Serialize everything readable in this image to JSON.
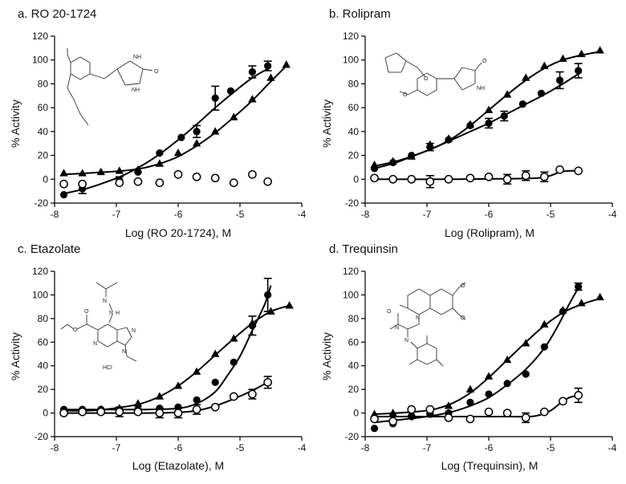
{
  "colors": {
    "ink": "#000000",
    "background": "#ffffff"
  },
  "chart_data": [
    {
      "type": "scatter",
      "title": "a.  RO 20-1724",
      "xlabel": "Log (RO 20-1724), M",
      "ylabel": "%  Activity",
      "xlim": [
        -8,
        -4
      ],
      "ylim": [
        -20,
        120
      ],
      "x_ticks": [
        "-8",
        "-7",
        "-6",
        "-5",
        "-4"
      ],
      "y_ticks": [
        "-20",
        "0",
        "20",
        "40",
        "60",
        "80",
        "100",
        "120"
      ],
      "structure_labels": [
        "NH",
        "O",
        "NH"
      ],
      "series": [
        {
          "name": "filled circles",
          "marker": "circle-filled",
          "x": [
            -7.85,
            -7.55,
            -6.95,
            -6.65,
            -6.3,
            -5.95,
            -5.7,
            -5.4,
            -5.15,
            -4.8,
            -4.55
          ],
          "y": [
            -13,
            -8,
            -1,
            6,
            22,
            35,
            40,
            68,
            74,
            90,
            95
          ],
          "err": [
            0,
            4,
            3,
            0,
            0,
            0,
            5,
            10,
            0,
            5,
            4
          ],
          "fit_x": [
            -7.85,
            -7.5,
            -7.2,
            -6.9,
            -6.6,
            -6.3,
            -6.0,
            -5.7,
            -5.4,
            -5.1,
            -4.8,
            -4.5
          ],
          "fit_y": [
            -12,
            -8,
            -3,
            3,
            11,
            21,
            33,
            46,
            60,
            73,
            85,
            94
          ]
        },
        {
          "name": "filled triangles",
          "marker": "triangle-filled",
          "x": [
            -7.85,
            -7.55,
            -7.25,
            -6.95,
            -6.65,
            -6.3,
            -6.0,
            -5.7,
            -5.4,
            -5.1,
            -4.8,
            -4.5,
            -4.25
          ],
          "y": [
            5,
            5,
            6,
            7,
            8,
            13,
            22,
            30,
            40,
            52,
            67,
            85,
            96
          ],
          "fit_x": [
            -7.85,
            -7.5,
            -7.2,
            -6.9,
            -6.6,
            -6.3,
            -6.0,
            -5.7,
            -5.4,
            -5.1,
            -4.8,
            -4.5,
            -4.25
          ],
          "fit_y": [
            4,
            5,
            6,
            7,
            9,
            13,
            19,
            28,
            39,
            52,
            66,
            82,
            95
          ]
        },
        {
          "name": "open circles",
          "marker": "circle-open",
          "x": [
            -7.85,
            -7.55,
            -6.95,
            -6.65,
            -6.3,
            -6.0,
            -5.7,
            -5.4,
            -5.1,
            -4.8,
            -4.55
          ],
          "y": [
            -4,
            -4,
            -3,
            -2,
            -3,
            4,
            2,
            1,
            -3,
            4,
            -2
          ],
          "err": [
            0,
            0,
            0,
            0,
            0,
            0,
            0,
            0,
            0,
            0,
            0
          ]
        }
      ]
    },
    {
      "type": "scatter",
      "title": "b.  Rolipram",
      "xlabel": "Log (Rolipram), M",
      "ylabel": "%  Activity",
      "xlim": [
        -8,
        -4
      ],
      "ylim": [
        -20,
        120
      ],
      "x_ticks": [
        "-8",
        "-7",
        "-6",
        "-5",
        "-4"
      ],
      "y_ticks": [
        "-20",
        "0",
        "20",
        "40",
        "60",
        "80",
        "100",
        "120"
      ],
      "structure_labels": [
        "O",
        "O",
        "O",
        "NH"
      ],
      "series": [
        {
          "name": "filled circles",
          "marker": "circle-filled",
          "x": [
            -7.85,
            -7.55,
            -7.25,
            -6.95,
            -6.65,
            -6.3,
            -6.0,
            -5.75,
            -5.45,
            -5.15,
            -4.85,
            -4.55
          ],
          "y": [
            9,
            14,
            20,
            27,
            33,
            45,
            47,
            53,
            63,
            72,
            83,
            91
          ],
          "err": [
            0,
            0,
            0,
            3,
            0,
            0,
            4,
            4,
            0,
            0,
            7,
            6
          ],
          "fit_x": [
            -7.85,
            -7.5,
            -7.2,
            -6.9,
            -6.6,
            -6.3,
            -6.0,
            -5.7,
            -5.4,
            -5.1,
            -4.8,
            -4.5
          ],
          "fit_y": [
            9,
            14,
            20,
            26,
            33,
            40,
            47,
            55,
            63,
            71,
            80,
            90
          ]
        },
        {
          "name": "filled triangles",
          "marker": "triangle-filled",
          "x": [
            -7.85,
            -7.55,
            -7.25,
            -6.95,
            -6.65,
            -6.3,
            -6.0,
            -5.7,
            -5.4,
            -5.1,
            -4.8,
            -4.5,
            -4.2
          ],
          "y": [
            12,
            15,
            19,
            29,
            34,
            46,
            58,
            71,
            85,
            95,
            101,
            105,
            108
          ],
          "fit_x": [
            -7.85,
            -7.5,
            -7.2,
            -6.9,
            -6.6,
            -6.3,
            -6.0,
            -5.7,
            -5.4,
            -5.1,
            -4.8,
            -4.5,
            -4.2
          ],
          "fit_y": [
            11,
            15,
            20,
            26,
            34,
            45,
            58,
            71,
            83,
            93,
            100,
            104,
            107
          ]
        },
        {
          "name": "open circles",
          "marker": "circle-open",
          "x": [
            -7.85,
            -7.55,
            -7.25,
            -6.95,
            -6.65,
            -6.3,
            -6.0,
            -5.7,
            -5.4,
            -5.1,
            -4.85,
            -4.55
          ],
          "y": [
            1,
            0,
            0,
            -2,
            0,
            1,
            2,
            0,
            3,
            2,
            8,
            7
          ],
          "err": [
            0,
            0,
            0,
            5,
            0,
            0,
            0,
            4,
            4,
            4,
            0,
            0
          ],
          "fit_x": [
            -7.85,
            -6.5,
            -5.5,
            -5.2,
            -5.0,
            -4.85,
            -4.7,
            -4.55
          ],
          "fit_y": [
            0,
            0,
            0.5,
            1,
            3,
            6,
            7,
            7
          ]
        }
      ]
    },
    {
      "type": "scatter",
      "title": "c.  Etazolate",
      "xlabel": "Log (Etazolate), M",
      "ylabel": "%  Activity",
      "xlim": [
        -8,
        -4
      ],
      "ylim": [
        -20,
        120
      ],
      "x_ticks": [
        "-8",
        "-7",
        "-6",
        "-5",
        "-4"
      ],
      "y_ticks": [
        "-20",
        "0",
        "20",
        "40",
        "60",
        "80",
        "100",
        "120"
      ],
      "structure_labels": [
        "N",
        "N",
        "H",
        "O",
        "O",
        "N",
        "N",
        "N",
        "HCl"
      ],
      "series": [
        {
          "name": "filled circles",
          "marker": "circle-filled",
          "x": [
            -7.85,
            -7.55,
            -7.25,
            -6.95,
            -6.65,
            -6.3,
            -6.0,
            -5.7,
            -5.4,
            -5.1,
            -4.8,
            -4.55
          ],
          "y": [
            3,
            3,
            3,
            3,
            3,
            4,
            5,
            11,
            26,
            43,
            74,
            100
          ],
          "err": [
            0,
            0,
            0,
            0,
            0,
            0,
            0,
            0,
            0,
            0,
            8,
            14
          ],
          "fit_x": [
            -7.85,
            -7.0,
            -6.5,
            -6.0,
            -5.7,
            -5.4,
            -5.2,
            -5.0,
            -4.8,
            -4.6,
            -4.5
          ],
          "fit_y": [
            3,
            3,
            3,
            4,
            8,
            18,
            32,
            48,
            70,
            92,
            108
          ]
        },
        {
          "name": "filled triangles",
          "marker": "triangle-filled",
          "x": [
            -7.85,
            -7.55,
            -7.25,
            -6.95,
            -6.65,
            -6.3,
            -6.0,
            -5.7,
            -5.4,
            -5.1,
            -4.8,
            -4.5,
            -4.2
          ],
          "y": [
            2,
            2,
            3,
            4,
            8,
            14,
            23,
            35,
            50,
            63,
            76,
            86,
            91
          ],
          "fit_x": [
            -7.85,
            -7.5,
            -7.2,
            -6.9,
            -6.6,
            -6.3,
            -6.0,
            -5.7,
            -5.4,
            -5.1,
            -4.8,
            -4.5,
            -4.2
          ],
          "fit_y": [
            2,
            2,
            3,
            5,
            8,
            14,
            23,
            35,
            49,
            63,
            76,
            86,
            91
          ]
        },
        {
          "name": "open circles",
          "marker": "circle-open",
          "x": [
            -7.85,
            -7.55,
            -7.25,
            -6.95,
            -6.65,
            -6.3,
            -6.0,
            -5.7,
            -5.4,
            -5.1,
            -4.8,
            -4.55
          ],
          "y": [
            0,
            1,
            1,
            1,
            1,
            0,
            0,
            3,
            5,
            14,
            16,
            26
          ],
          "err": [
            0,
            0,
            0,
            4,
            0,
            4,
            4,
            4,
            0,
            0,
            4,
            5
          ],
          "fit_x": [
            -7.85,
            -6.5,
            -6.0,
            -5.7,
            -5.4,
            -5.1,
            -4.8,
            -4.55
          ],
          "fit_y": [
            0,
            0,
            0.5,
            2,
            6,
            12,
            19,
            26
          ]
        }
      ]
    },
    {
      "type": "scatter",
      "title": "d.  Trequinsin",
      "xlabel": "Log (Trequinsin), M",
      "ylabel": "%  Activity",
      "xlim": [
        -8,
        -4
      ],
      "ylim": [
        -20,
        120
      ],
      "x_ticks": [
        "-8",
        "-7",
        "-6",
        "-5",
        "-4"
      ],
      "y_ticks": [
        "-20",
        "0",
        "20",
        "40",
        "60",
        "80",
        "100",
        "120"
      ],
      "structure_labels": [
        "O",
        "O",
        "O",
        "N",
        "N",
        "N"
      ],
      "series": [
        {
          "name": "filled circles",
          "marker": "circle-filled",
          "x": [
            -7.85,
            -7.55,
            -7.25,
            -6.95,
            -6.65,
            -6.3,
            -6.0,
            -5.7,
            -5.4,
            -5.1,
            -4.8,
            -4.55
          ],
          "y": [
            -13,
            -9,
            -3,
            -1,
            0,
            9,
            16,
            25,
            33,
            56,
            86,
            107
          ],
          "err": [
            0,
            0,
            0,
            0,
            0,
            0,
            0,
            0,
            0,
            0,
            0,
            3
          ],
          "fit_x": [
            -7.85,
            -7.0,
            -6.6,
            -6.3,
            -6.0,
            -5.7,
            -5.4,
            -5.1,
            -4.9,
            -4.7,
            -4.55
          ],
          "fit_y": [
            -8,
            -3,
            1,
            6,
            13,
            24,
            37,
            55,
            72,
            92,
            106
          ]
        },
        {
          "name": "filled triangles",
          "marker": "triangle-filled",
          "x": [
            -7.85,
            -7.55,
            -7.25,
            -6.95,
            -6.65,
            -6.3,
            -6.0,
            -5.7,
            -5.4,
            -5.1,
            -4.8,
            -4.5,
            -4.2
          ],
          "y": [
            -1,
            0,
            0,
            2,
            6,
            20,
            31,
            45,
            59,
            75,
            87,
            93,
            98
          ],
          "fit_x": [
            -7.85,
            -7.5,
            -7.2,
            -6.9,
            -6.6,
            -6.3,
            -6.0,
            -5.7,
            -5.4,
            -5.1,
            -4.8,
            -4.5,
            -4.2
          ],
          "fit_y": [
            -1,
            0,
            1,
            3,
            8,
            17,
            30,
            45,
            60,
            74,
            85,
            92,
            97
          ]
        },
        {
          "name": "open circles",
          "marker": "circle-open",
          "x": [
            -7.85,
            -7.55,
            -7.25,
            -6.95,
            -6.65,
            -6.3,
            -6.0,
            -5.7,
            -5.4,
            -5.1,
            -4.8,
            -4.55
          ],
          "y": [
            -5,
            -7,
            3,
            3,
            -4,
            -5,
            1,
            0,
            -4,
            1,
            10,
            15
          ],
          "err": [
            0,
            0,
            0,
            0,
            0,
            0,
            0,
            0,
            4,
            0,
            0,
            6
          ],
          "fit_x": [
            -7.85,
            -6.0,
            -5.4,
            -5.2,
            -5.0,
            -4.85,
            -4.7,
            -4.55
          ],
          "fit_y": [
            -3,
            -3,
            -3,
            -2,
            2,
            8,
            13,
            15
          ]
        }
      ]
    }
  ]
}
